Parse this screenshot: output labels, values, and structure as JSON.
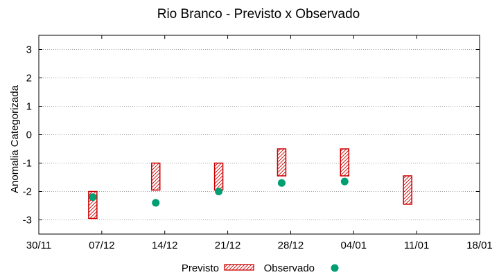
{
  "chart_data": {
    "type": "scatter",
    "title": "Rio Branco - Previsto x Observado",
    "xlabel": "",
    "ylabel": "Anomalia Categorizada",
    "x_ticks": [
      "30/11",
      "07/12",
      "14/12",
      "21/12",
      "28/12",
      "04/01",
      "11/01",
      "18/01"
    ],
    "xlim": [
      "2022-11-30",
      "2023-01-18"
    ],
    "ylim": [
      -3.5,
      3.5
    ],
    "y_ticks": [
      -3,
      -2,
      -1,
      0,
      1,
      2,
      3
    ],
    "y_tick_labels": [
      "-3",
      "-2",
      "-1",
      "0",
      "1",
      "2",
      "3"
    ],
    "grid": true,
    "legend": "bottom-center",
    "colors": {
      "previsto": "#cc0000",
      "observado": "#009e73",
      "grid": "#a0a0a0"
    },
    "series": [
      {
        "name": "Previsto",
        "kind": "range-box",
        "points": [
          {
            "x": "2022-12-06",
            "low": -2.95,
            "high": -2.0
          },
          {
            "x": "2022-12-13",
            "low": -1.95,
            "high": -1.0
          },
          {
            "x": "2022-12-20",
            "low": -1.95,
            "high": -1.0
          },
          {
            "x": "2022-12-27",
            "low": -1.45,
            "high": -0.5
          },
          {
            "x": "2023-01-03",
            "low": -1.45,
            "high": -0.5
          },
          {
            "x": "2023-01-10",
            "low": -2.45,
            "high": -1.45
          }
        ]
      },
      {
        "name": "Observado",
        "kind": "points",
        "points": [
          {
            "x": "2022-12-06",
            "y": -2.2
          },
          {
            "x": "2022-12-13",
            "y": -2.4
          },
          {
            "x": "2022-12-20",
            "y": -2.0
          },
          {
            "x": "2022-12-27",
            "y": -1.7
          },
          {
            "x": "2023-01-03",
            "y": -1.65
          }
        ]
      }
    ]
  }
}
